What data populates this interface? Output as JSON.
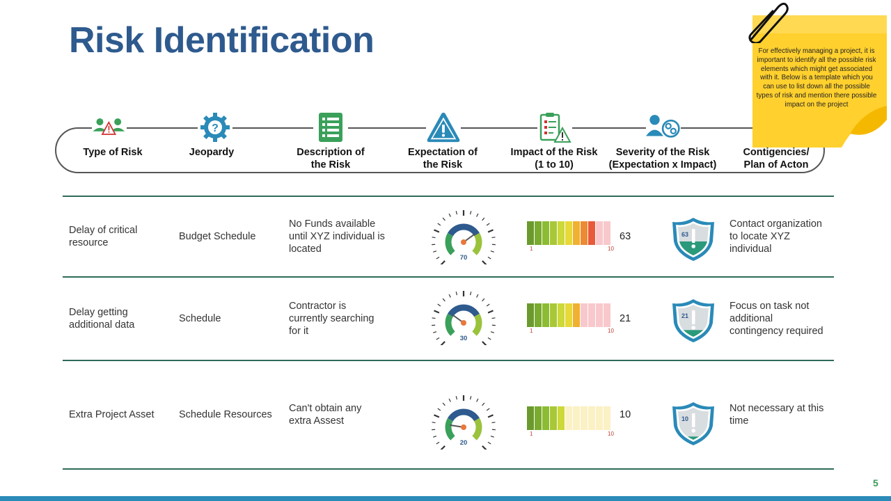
{
  "title": "Risk Identification",
  "headers": [
    {
      "label": "Type of Risk",
      "icon": "people-warning-icon"
    },
    {
      "label": "Jeopardy",
      "icon": "gear-question-icon"
    },
    {
      "label": "Description of\nthe Risk",
      "icon": "document-list-icon"
    },
    {
      "label": "Expectation of\nthe Risk",
      "icon": "warning-triangle-icon"
    },
    {
      "label": "Impact of the Risk\n(1 to 10)",
      "icon": "checklist-warning-icon"
    },
    {
      "label": "Severity of the Risk\n(Expectation x Impact)",
      "icon": "person-gears-icon"
    },
    {
      "label": "Contigencies/\nPlan of Acton",
      "icon": ""
    }
  ],
  "rows": [
    {
      "type": "Delay of critical\nresource",
      "jeopardy": "Budget Schedule",
      "description": "No Funds available\nuntil XYZ  individual is\nlocated",
      "expectation": "70",
      "impact": 9,
      "meter_min": "1",
      "meter_max": "10",
      "severity": "63",
      "contingency": "Contact organization\nto locate XYZ\nindividual"
    },
    {
      "type": "Delay getting\nadditional data",
      "jeopardy": "Schedule",
      "description": "Contractor is\ncurrently searching\nfor it",
      "expectation": "30",
      "impact": 7,
      "meter_min": "1",
      "meter_max": "10",
      "severity": "21",
      "contingency": "Focus on task not\nadditional\ncontingency required"
    },
    {
      "type": "Extra Project Asset",
      "jeopardy": "Schedule Resources",
      "description": "Can't obtain any\nextra Assest",
      "expectation": "20",
      "impact": 5,
      "meter_min": "1",
      "meter_max": "10",
      "severity": "10",
      "contingency": "Not necessary at this\ntime"
    }
  ],
  "note": "For effectively managing a project, it is important to identify all the possible risk elements  which might  get associated with it. Below is a template  which you can use to list down all the possible types of risk and mention  there possible impact on the project",
  "page_number": "5",
  "colors": {
    "title": "#2e5a8e",
    "accent_blue": "#2a8ab8",
    "green": "#3aa05a",
    "note_yellow": "#ffd02e",
    "meter": [
      "#6a9a2e",
      "#7aaa2e",
      "#8cbc34",
      "#a8c838",
      "#cdd83a",
      "#e8d838",
      "#f0b030",
      "#ee8a34",
      "#e85a3a",
      "#d8202a"
    ]
  }
}
